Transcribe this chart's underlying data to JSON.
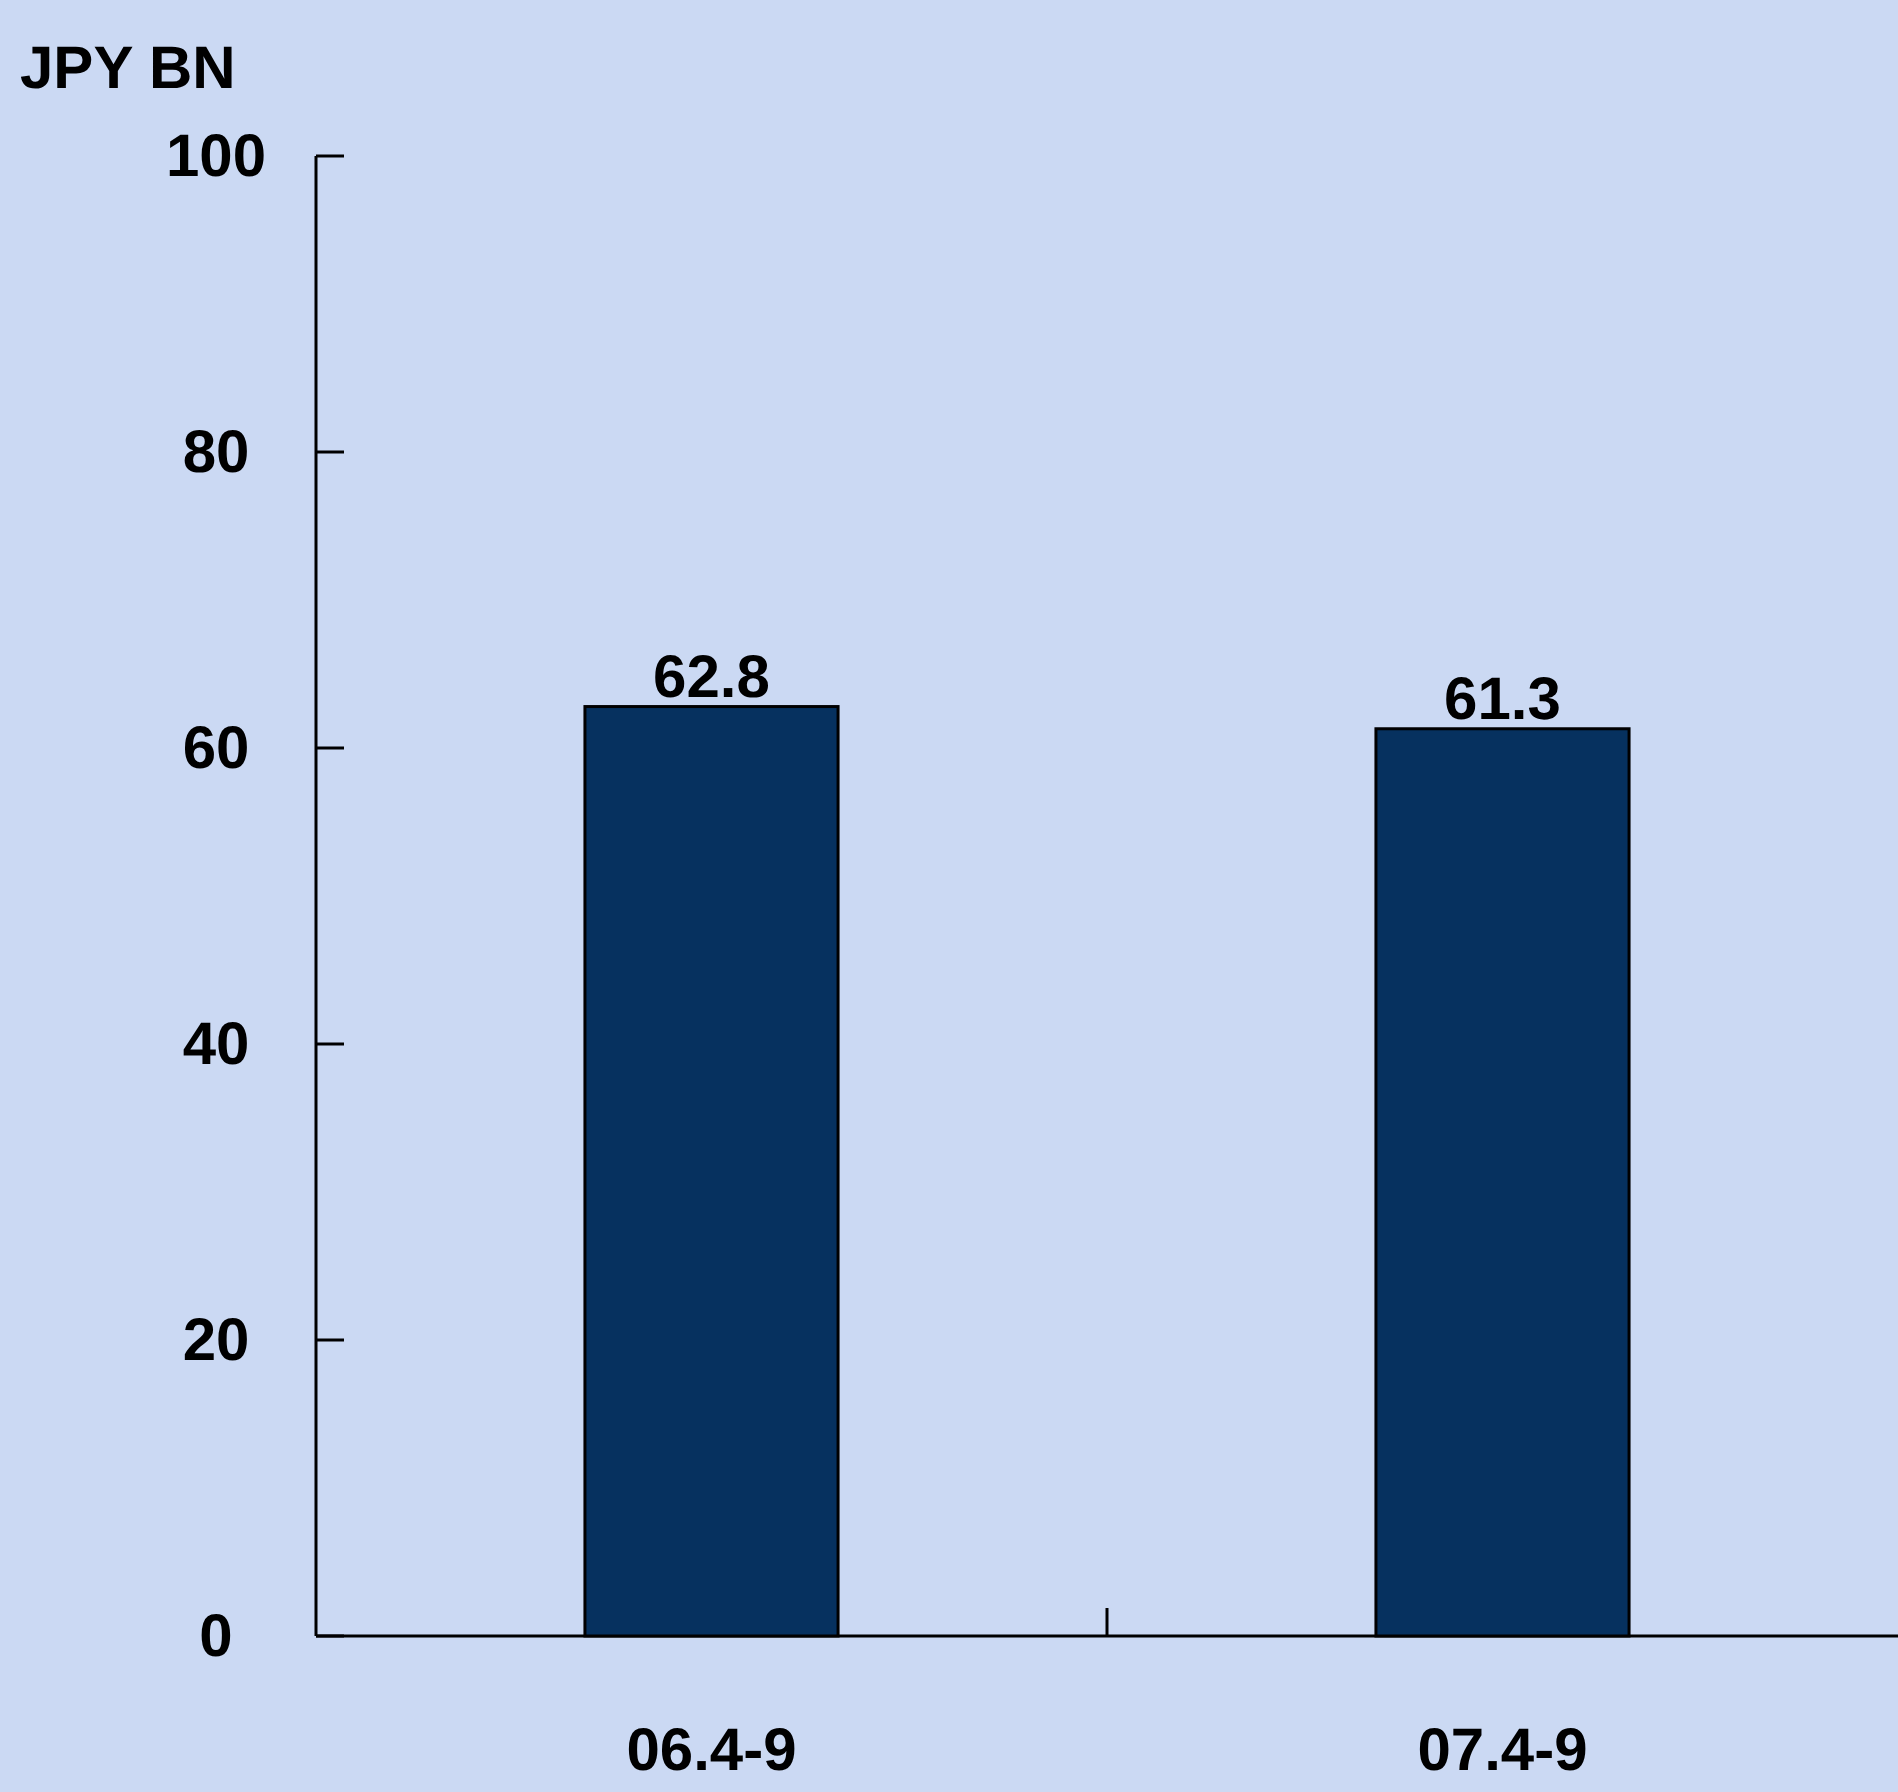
{
  "chart_data": {
    "type": "bar",
    "ylabel": "JPY BN",
    "categories": [
      "06.4-9",
      "07.4-9"
    ],
    "values": [
      62.8,
      61.3
    ],
    "color": "#06315f",
    "ylim": [
      0,
      100
    ],
    "yticks": [
      0,
      20,
      40,
      60,
      80,
      100
    ],
    "data_labels": true,
    "grid": false
  }
}
